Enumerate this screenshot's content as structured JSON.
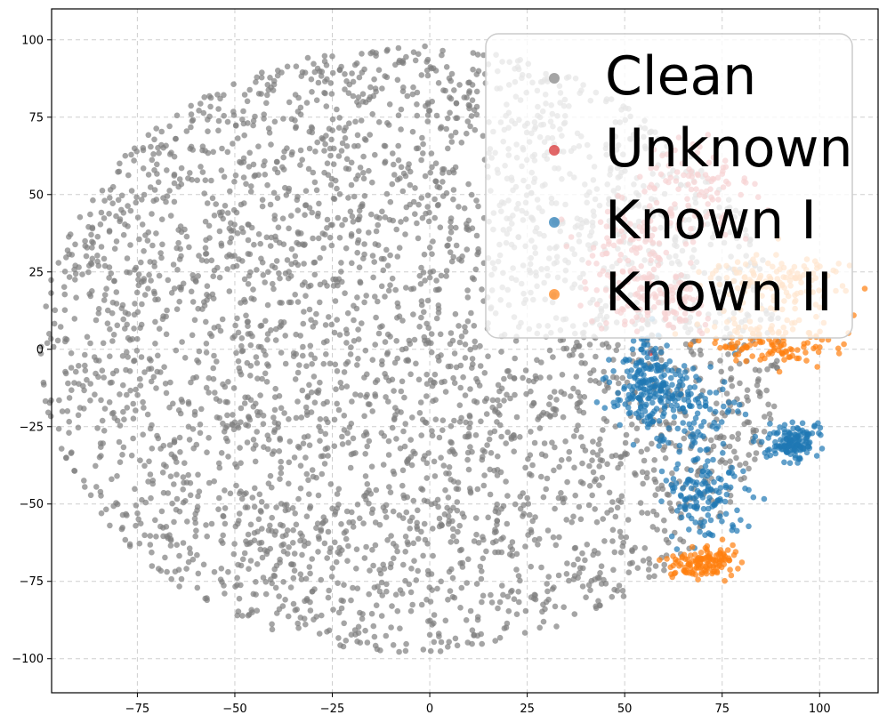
{
  "chart_data": {
    "type": "scatter",
    "title": "",
    "xlabel": "",
    "ylabel": "",
    "xlim": [
      -97,
      115
    ],
    "ylim": [
      -111,
      110
    ],
    "x_ticks": [
      -75,
      -50,
      -25,
      0,
      25,
      50,
      75,
      100
    ],
    "y_ticks": [
      -100,
      -75,
      -50,
      -25,
      0,
      25,
      50,
      75,
      100
    ],
    "x_tick_labels": [
      "−75",
      "−50",
      "−25",
      "0",
      "25",
      "50",
      "75",
      "100"
    ],
    "y_tick_labels": [
      "−100",
      "−75",
      "−50",
      "−25",
      "0",
      "25",
      "50",
      "75",
      "100"
    ],
    "grid": true,
    "legend_position": "upper-right",
    "series": [
      {
        "name": "Clean",
        "color": "#7f7f7f",
        "approx_points": 3600,
        "clusters": [
          {
            "kind": "disk",
            "center": [
              -5,
              0
            ],
            "radius": 98
          }
        ]
      },
      {
        "name": "Unknown",
        "color": "#d62728",
        "approx_points": 300,
        "clusters": [
          {
            "kind": "blob",
            "center": [
              68,
              50
            ],
            "spread": [
              8,
              9
            ]
          },
          {
            "kind": "blob",
            "center": [
              50,
              30
            ],
            "spread": [
              6,
              9
            ]
          },
          {
            "kind": "blob",
            "center": [
              60,
              15
            ],
            "spread": [
              7,
              5
            ]
          }
        ]
      },
      {
        "name": "Known I",
        "color": "#1f77b4",
        "approx_points": 560,
        "clusters": [
          {
            "kind": "blob",
            "center": [
              55,
              -10
            ],
            "spread": [
              4,
              7
            ]
          },
          {
            "kind": "blob",
            "center": [
              65,
              -18
            ],
            "spread": [
              7,
              6
            ]
          },
          {
            "kind": "blob",
            "center": [
              70,
              -45
            ],
            "spread": [
              5,
              8
            ]
          },
          {
            "kind": "blob",
            "center": [
              93,
              -30
            ],
            "spread": [
              3,
              3
            ]
          }
        ]
      },
      {
        "name": "Known II",
        "color": "#ff7f0e",
        "approx_points": 380,
        "clusters": [
          {
            "kind": "blob",
            "center": [
              88,
              22
            ],
            "spread": [
              9,
              5
            ]
          },
          {
            "kind": "blob",
            "center": [
              88,
              3
            ],
            "spread": [
              9,
              4
            ]
          },
          {
            "kind": "blob",
            "center": [
              70,
              -69
            ],
            "spread": [
              4,
              2.5
            ]
          }
        ]
      }
    ]
  }
}
